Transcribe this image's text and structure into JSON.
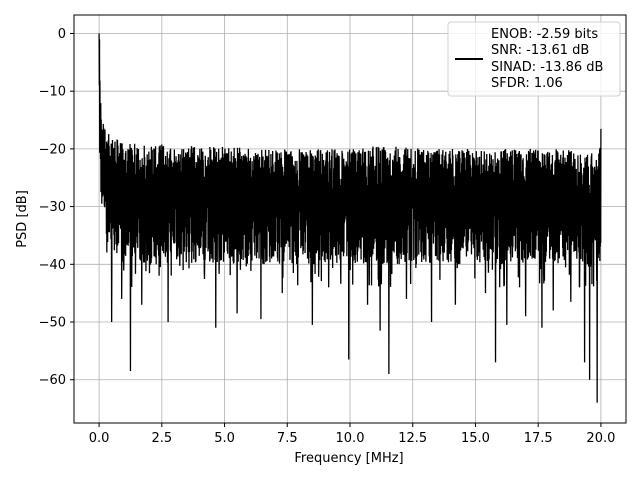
{
  "chart_data": {
    "type": "line",
    "xlabel": "Frequency [MHz]",
    "ylabel": "PSD [dB]",
    "xlim": [
      -1.0,
      21.0
    ],
    "ylim": [
      -67.5,
      3.2
    ],
    "x_ticks": [
      0.0,
      2.5,
      5.0,
      7.5,
      10.0,
      12.5,
      15.0,
      17.5,
      20.0
    ],
    "x_tick_labels": [
      "0.0",
      "2.5",
      "5.0",
      "7.5",
      "10.0",
      "12.5",
      "15.0",
      "17.5",
      "20.0"
    ],
    "y_ticks": [
      0,
      -10,
      -20,
      -30,
      -40,
      -50,
      -60
    ],
    "y_tick_labels": [
      "0",
      "−10",
      "−20",
      "−30",
      "−40",
      "−50",
      "−60"
    ],
    "grid": true,
    "legend_position": "top-right",
    "series": [
      {
        "color": "#000000",
        "x": [
          0.0,
          0.02,
          0.05,
          0.1,
          0.15,
          0.2,
          0.3,
          0.4,
          0.5,
          0.6,
          0.8,
          1.0,
          1.2,
          1.5,
          2.0,
          2.5,
          3.0,
          4.0,
          5.0,
          6.0,
          7.0,
          8.0,
          8.5,
          9.0,
          10.0,
          11.0,
          11.5,
          12.0,
          13.0,
          14.0,
          15.0,
          16.0,
          16.5,
          17.0,
          18.0,
          18.5,
          19.0,
          19.3,
          19.5,
          19.8,
          20.0
        ],
        "upper": [
          0.5,
          -5,
          -10,
          -13,
          -14.5,
          -16,
          -17,
          -17.5,
          -18,
          -18,
          -18.5,
          -19,
          -19,
          -19,
          -19,
          -19,
          -19.5,
          -19.5,
          -19.5,
          -20,
          -20,
          -20,
          -20,
          -20,
          -20,
          -19.5,
          -19.5,
          -19.5,
          -20,
          -20,
          -20,
          -20,
          -20,
          -20,
          -20,
          -20,
          -20.5,
          -21,
          -21,
          -20,
          -15
        ],
        "center": [
          -8,
          -14,
          -18,
          -21,
          -23,
          -25,
          -26,
          -27,
          -27,
          -27.5,
          -27.5,
          -28,
          -28,
          -28,
          -28,
          -28,
          -28,
          -28.5,
          -28.5,
          -28.5,
          -29,
          -29,
          -29,
          -29,
          -29,
          -29,
          -29,
          -29,
          -29,
          -29,
          -29,
          -29,
          -29.5,
          -29.5,
          -29.5,
          -29.5,
          -29.5,
          -30,
          -30,
          -30,
          -29
        ],
        "lower": [
          -10,
          -20,
          -27,
          -30,
          -32,
          -34,
          -36,
          -38,
          -38,
          -39,
          -39,
          -40,
          -40,
          -40,
          -40,
          -40,
          -40,
          -40,
          -40,
          -40,
          -40,
          -40,
          -40,
          -40,
          -40,
          -40,
          -40,
          -40,
          -40,
          -40,
          -40,
          -40,
          -40,
          -40,
          -40,
          -40,
          -40,
          -40,
          -40,
          -40,
          -40
        ],
        "dips": [
          [
            0.5,
            -50.0
          ],
          [
            0.9,
            -46.0
          ],
          [
            1.25,
            -58.5
          ],
          [
            1.7,
            -47.0
          ],
          [
            2.75,
            -50.0
          ],
          [
            3.35,
            -41.0
          ],
          [
            4.65,
            -51.0
          ],
          [
            5.5,
            -48.5
          ],
          [
            6.45,
            -49.5
          ],
          [
            7.3,
            -45.0
          ],
          [
            8.5,
            -50.5
          ],
          [
            9.15,
            -44.0
          ],
          [
            9.95,
            -56.5
          ],
          [
            10.7,
            -47.0
          ],
          [
            11.2,
            -51.5
          ],
          [
            11.55,
            -59.0
          ],
          [
            12.25,
            -46.0
          ],
          [
            13.25,
            -50.0
          ],
          [
            14.2,
            -47.0
          ],
          [
            15.8,
            -57.0
          ],
          [
            16.25,
            -50.5
          ],
          [
            17.0,
            -49.0
          ],
          [
            17.65,
            -51.0
          ],
          [
            18.1,
            -48.0
          ],
          [
            18.8,
            -46.5
          ],
          [
            19.35,
            -57.0
          ],
          [
            19.55,
            -60.0
          ],
          [
            19.85,
            -64.0
          ],
          [
            19.15,
            -44.0
          ],
          [
            15.4,
            -45.0
          ]
        ]
      }
    ],
    "legend": {
      "lines": [
        "ENOB: -2.59 bits",
        "SNR: -13.61 dB",
        "SINAD: -13.86 dB",
        "SFDR: 1.06"
      ]
    }
  }
}
